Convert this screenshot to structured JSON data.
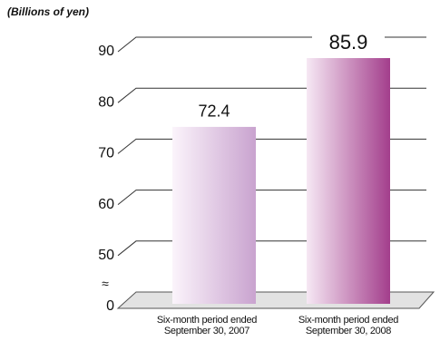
{
  "chart_data": {
    "type": "bar",
    "unit_label": "(Billions of yen)",
    "categories": [
      "Six-month period ended September 30, 2007",
      "Six-month period ended September 30, 2008"
    ],
    "values": [
      72.4,
      85.9
    ],
    "colors": [
      "#c9a3cf",
      "#a33e8c"
    ],
    "ylim": [
      0,
      90
    ],
    "yticks": [
      0,
      50,
      60,
      70,
      80,
      90
    ],
    "axis_break_label": "≈",
    "grid": true
  }
}
